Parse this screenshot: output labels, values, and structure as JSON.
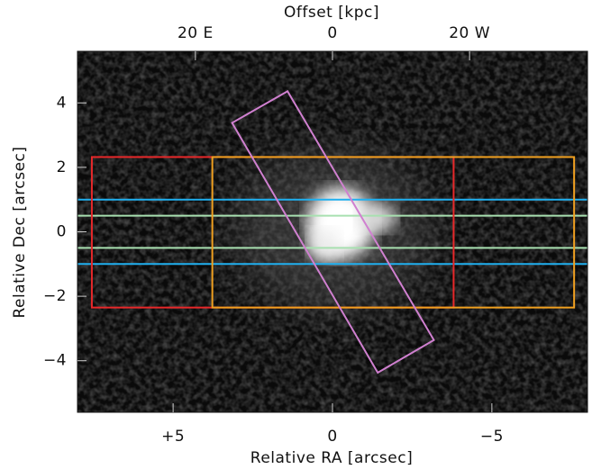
{
  "chart_data": {
    "type": "image",
    "title": "Offset [kpc]",
    "x_label": "Relative RA [arcsec]",
    "y_label": "Relative Dec [arcsec]",
    "xlim": [
      8,
      -8
    ],
    "ylim": [
      -5.6,
      5.6
    ],
    "xticks": [
      {
        "value": 5,
        "label": "+5"
      },
      0,
      {
        "value": -5,
        "label": "−5"
      }
    ],
    "yticks": [
      4,
      2,
      0,
      {
        "value": -2,
        "label": "−2"
      },
      {
        "value": -4,
        "label": "−4"
      }
    ],
    "x2lim": [
      37.2,
      -37.2
    ],
    "x2ticks": [
      {
        "value": 20,
        "label": "20 E"
      },
      0,
      {
        "value": -20,
        "label": "20 W"
      }
    ],
    "rectangles": [
      {
        "color": "#e8282a",
        "x": [
          7.55,
          -3.8
        ],
        "y": [
          2.32,
          -2.35
        ]
      },
      {
        "color": "#f0a020",
        "x": [
          3.77,
          -7.58
        ],
        "y": [
          2.32,
          -2.35
        ]
      }
    ],
    "hlines": [
      {
        "color": "#20b0f0",
        "y": 1.0
      },
      {
        "color": "#20b0f0",
        "y": -1.0
      },
      {
        "color": "#a8e0b0",
        "y": 0.5
      },
      {
        "color": "#a8e0b0",
        "y": -0.5
      }
    ],
    "polygon": {
      "color": "#d080d0",
      "x": [
        3.15,
        1.41,
        -3.18,
        -1.42
      ],
      "y": [
        3.38,
        4.36,
        -3.36,
        -4.37
      ]
    }
  }
}
